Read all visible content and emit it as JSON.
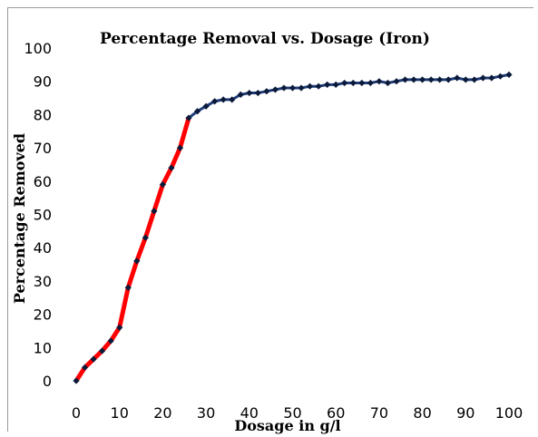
{
  "chart_data": {
    "type": "line",
    "title": "Percentage Removal vs. Dosage  (Iron)",
    "xlabel": "Dosage in g/l",
    "ylabel": "Percentage Removed",
    "xlim": [
      0,
      100
    ],
    "ylim": [
      0,
      100
    ],
    "xticks": [
      0,
      10,
      20,
      30,
      40,
      50,
      60,
      70,
      80,
      90,
      100
    ],
    "yticks": [
      0,
      10,
      20,
      30,
      40,
      50,
      60,
      70,
      80,
      90,
      100
    ],
    "grid": false,
    "legend": "none",
    "colors": {
      "line_low": "#ff0000",
      "line_high": "#1f3d7a",
      "marker": "#0b1a3a"
    },
    "series": [
      {
        "x": [
          0,
          2,
          4,
          6,
          8,
          10,
          12,
          14,
          16,
          18,
          20,
          22,
          24,
          26,
          28,
          30,
          32,
          34,
          36,
          38,
          40,
          42,
          44,
          46,
          48,
          50,
          52,
          54,
          56,
          58,
          60,
          62,
          64,
          66,
          68,
          70,
          72,
          74,
          76,
          78,
          80,
          82,
          84,
          86,
          88,
          90,
          92,
          94,
          96,
          98,
          100
        ],
        "values": [
          0,
          4,
          6.5,
          9,
          12,
          16,
          28,
          36,
          43,
          51,
          59,
          64,
          70,
          79,
          81,
          82.5,
          84,
          84.5,
          84.5,
          86,
          86.5,
          86.5,
          87,
          87.5,
          88,
          88,
          88,
          88.5,
          88.5,
          89,
          89,
          89.5,
          89.5,
          89.5,
          89.5,
          90,
          89.5,
          90,
          90.5,
          90.5,
          90.5,
          90.5,
          90.5,
          90.5,
          91,
          90.5,
          90.5,
          91,
          91,
          91.5,
          92
        ]
      }
    ]
  }
}
